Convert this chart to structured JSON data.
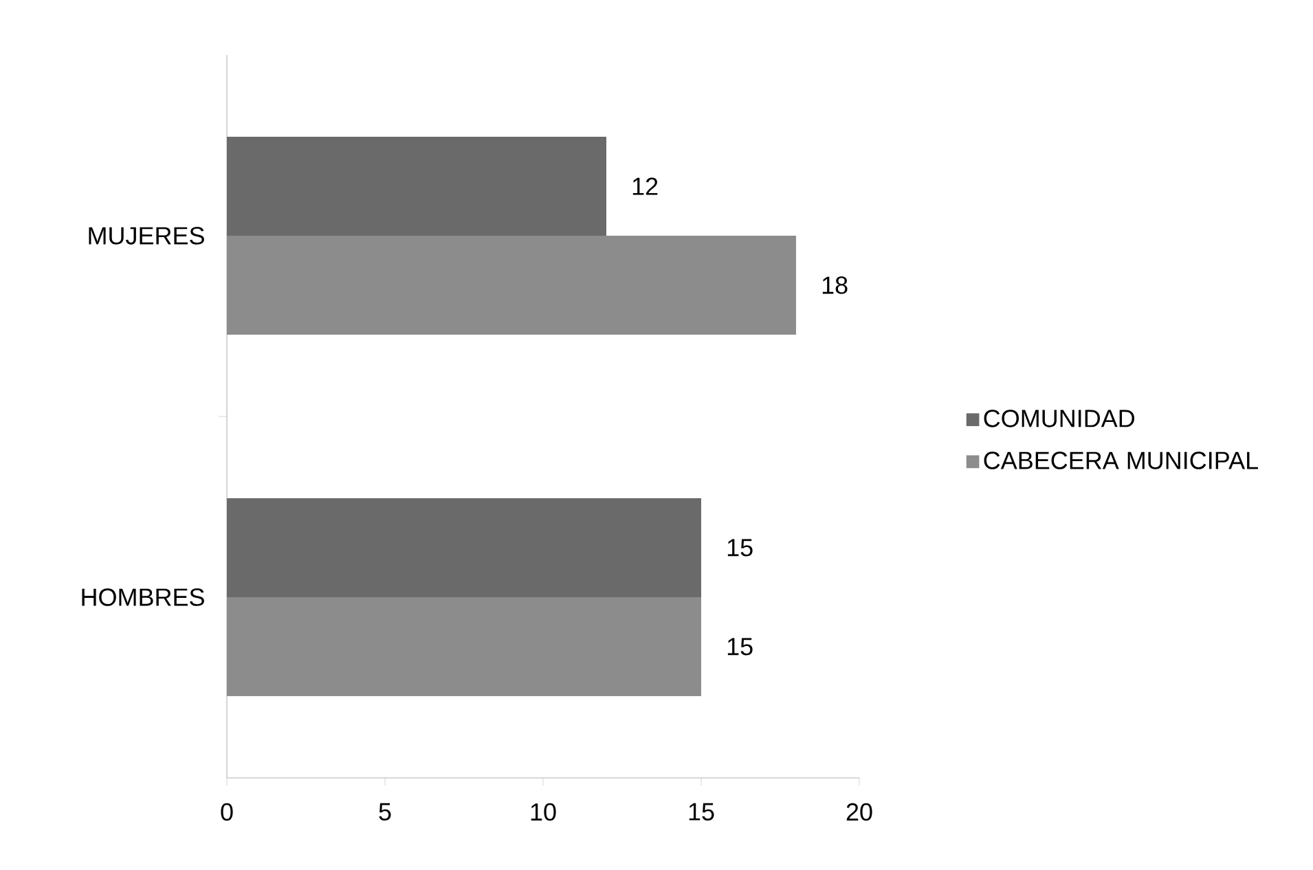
{
  "chart_data": {
    "type": "bar",
    "orientation": "horizontal",
    "categories": [
      "MUJERES",
      "HOMBRES"
    ],
    "series": [
      {
        "name": "COMUNIDAD",
        "color": "#6a6a6a",
        "values": [
          12,
          15
        ]
      },
      {
        "name": "CABECERA MUNICIPAL",
        "color": "#8c8c8c",
        "values": [
          18,
          15
        ]
      }
    ],
    "xlim": [
      0,
      20
    ],
    "xticks": [
      0,
      5,
      10,
      15,
      20
    ],
    "data_labels": true,
    "legend": "right",
    "grid": false
  }
}
